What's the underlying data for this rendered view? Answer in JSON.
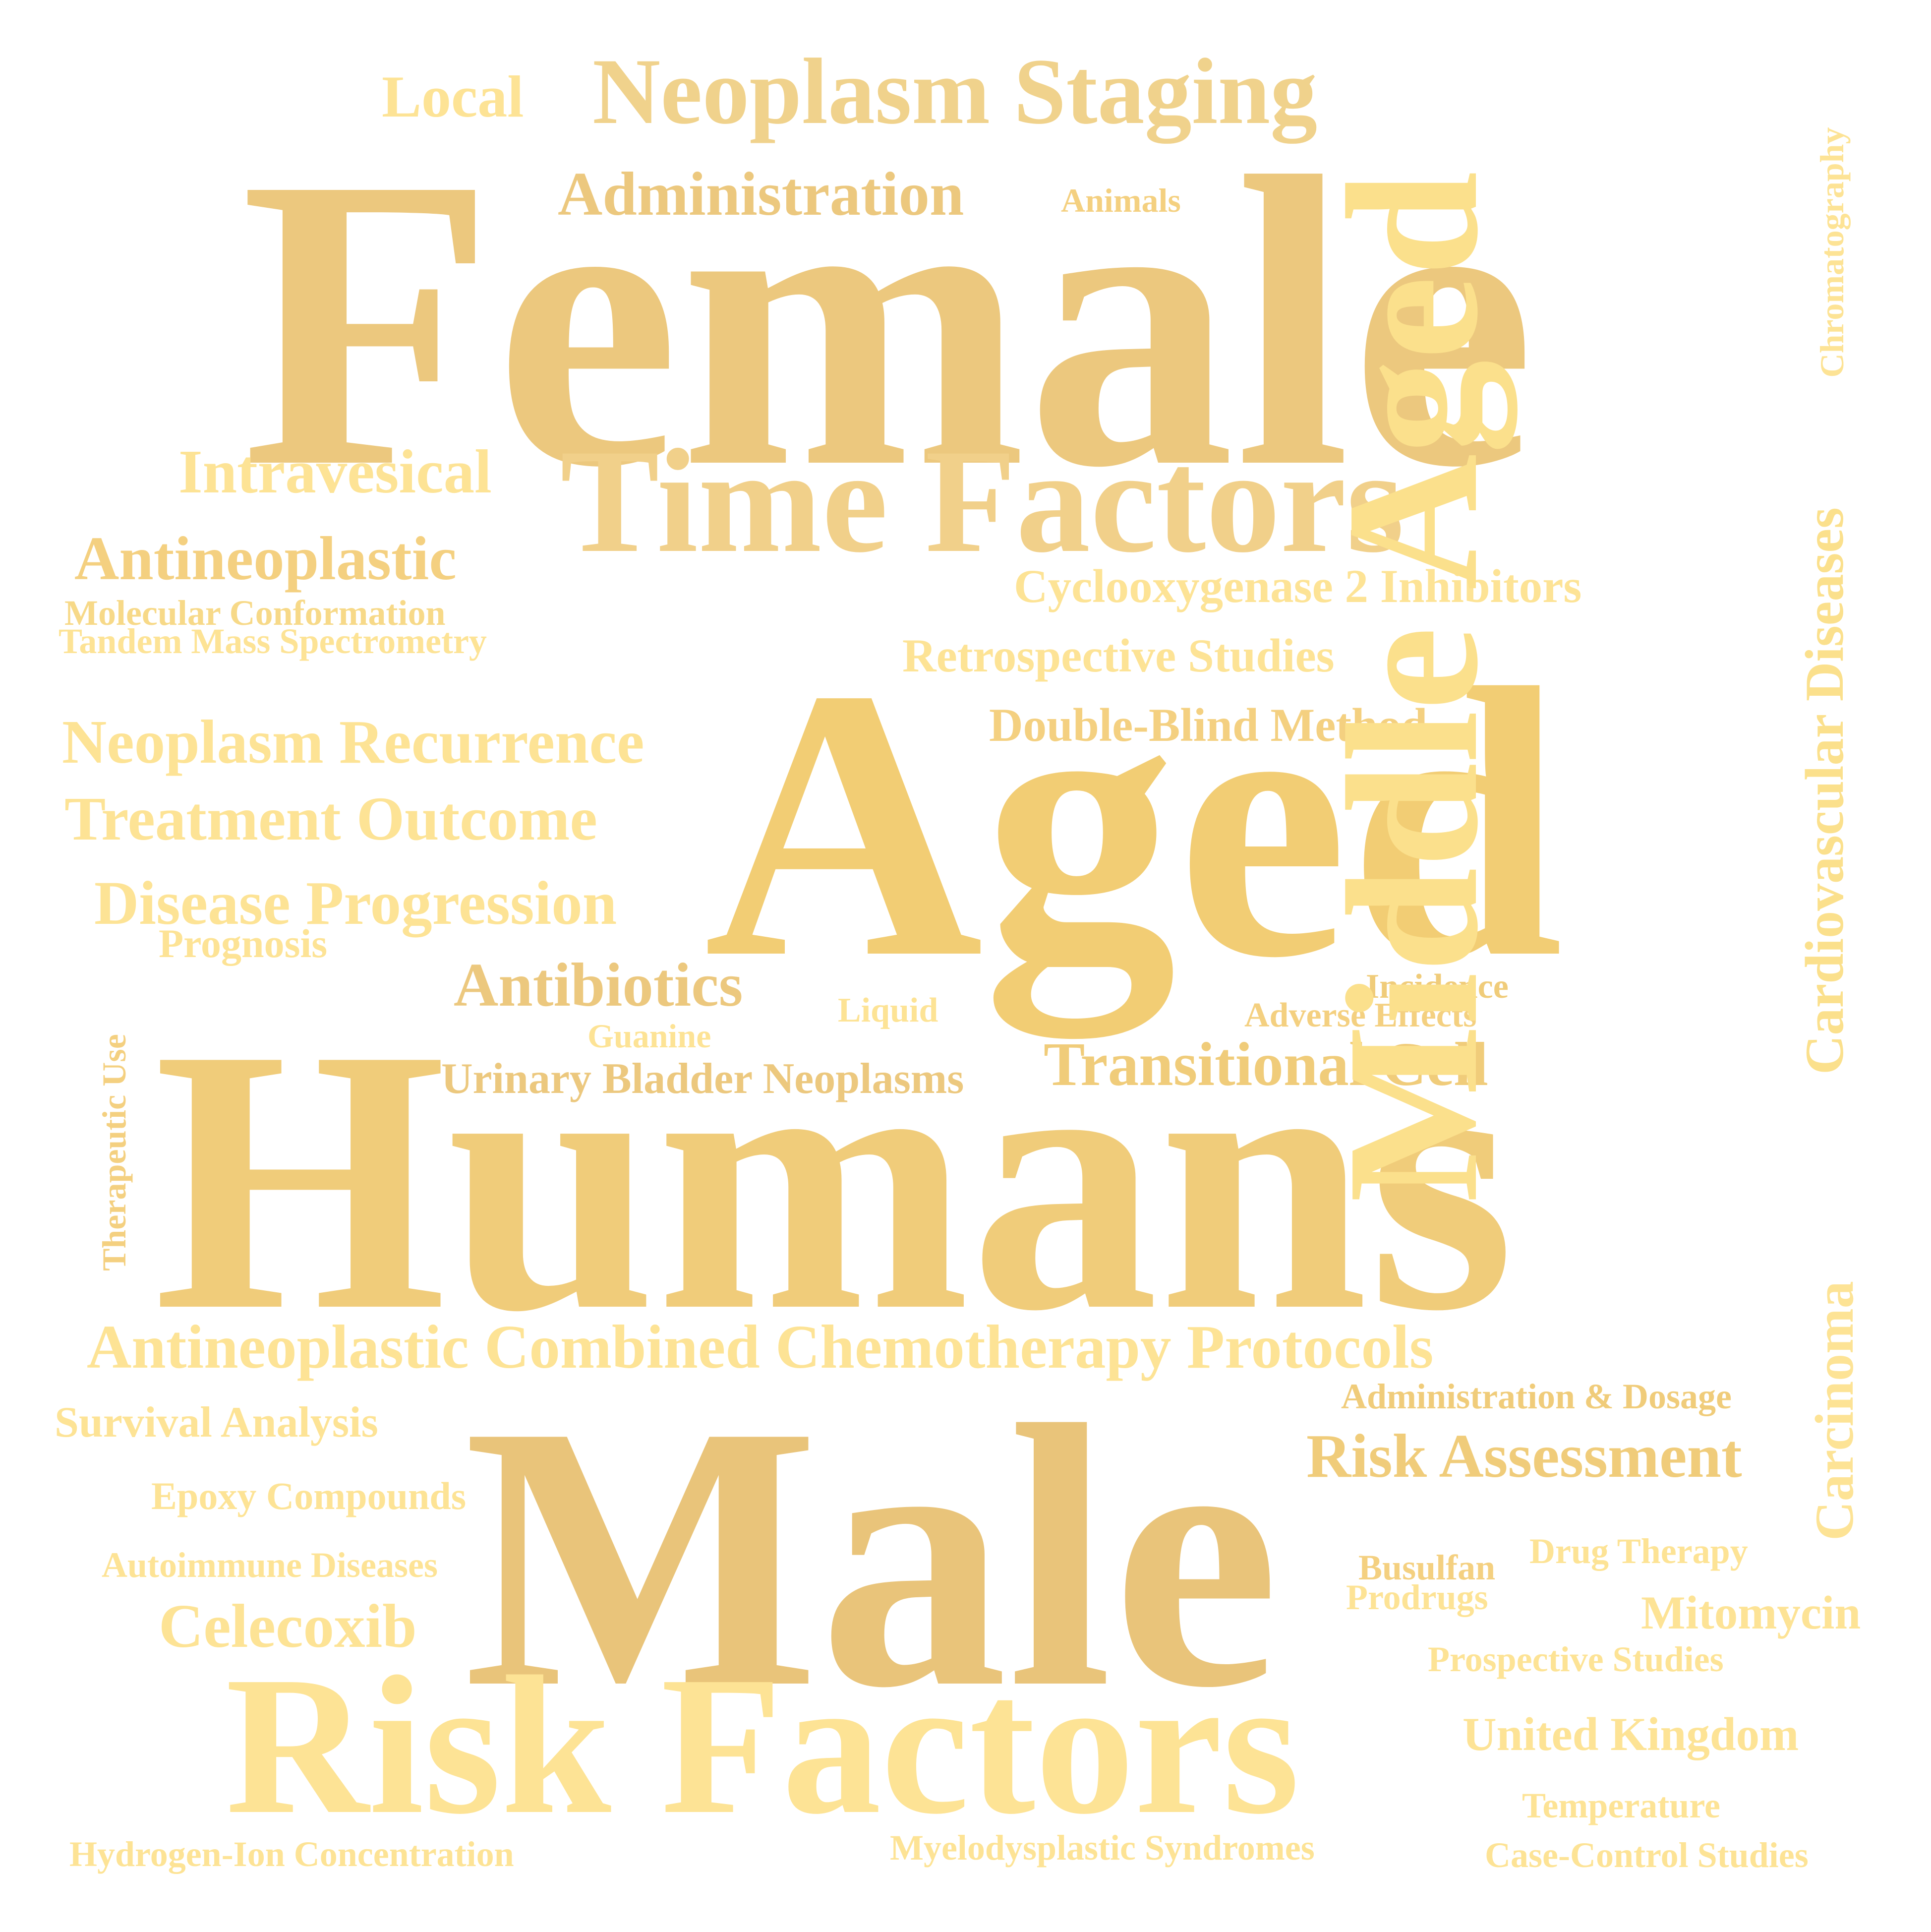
{
  "palette": [
    "#ecc87e",
    "#f0cc7a",
    "#f4d080",
    "#f7d988",
    "#fbe08c",
    "#fde5a0"
  ],
  "words": [
    {
      "id": "w-female",
      "text": "Female",
      "color": "#ecc87e"
    },
    {
      "id": "w-humans",
      "text": "Humans",
      "color": "#f0cc7a"
    },
    {
      "id": "w-male",
      "text": "Male",
      "color": "#e9c47a"
    },
    {
      "id": "w-aged",
      "text": "Aged",
      "color": "#f2cd74"
    },
    {
      "id": "w-middle-aged",
      "text": "Middle Aged",
      "color": "#fbe08c"
    },
    {
      "id": "w-risk-factors",
      "text": "Risk Factors",
      "color": "#fde395"
    },
    {
      "id": "w-time-factors",
      "text": "Time Factors",
      "color": "#f1d08a"
    },
    {
      "id": "w-neoplasm-staging",
      "text": "Neoplasm Staging",
      "color": "#f0d28c"
    },
    {
      "id": "w-administration",
      "text": "Administration",
      "color": "#ecc87e"
    },
    {
      "id": "w-local",
      "text": "Local",
      "color": "#fde395"
    },
    {
      "id": "w-animals",
      "text": "Animals",
      "color": "#f4d080"
    },
    {
      "id": "w-chromatography",
      "text": "Chromatography",
      "color": "#fde395"
    },
    {
      "id": "w-intravesical",
      "text": "Intravesical",
      "color": "#fde395"
    },
    {
      "id": "w-antineoplastic",
      "text": "Antineoplastic",
      "color": "#f4d080"
    },
    {
      "id": "w-molecular-conformation",
      "text": "Molecular Conformation",
      "color": "#f7d988"
    },
    {
      "id": "w-tandem-mass",
      "text": "Tandem Mass Spectrometry",
      "color": "#fde395"
    },
    {
      "id": "w-cox2",
      "text": "Cyclooxygenase 2 Inhibitors",
      "color": "#fde395"
    },
    {
      "id": "w-retrospective",
      "text": "Retrospective Studies",
      "color": "#fde395"
    },
    {
      "id": "w-double-blind",
      "text": "Double-Blind Method",
      "color": "#f4d080"
    },
    {
      "id": "w-cardiovascular",
      "text": "Cardiovascular Diseases",
      "color": "#fbe08c"
    },
    {
      "id": "w-neoplasm-recurrence",
      "text": "Neoplasm Recurrence",
      "color": "#fde395"
    },
    {
      "id": "w-treatment-outcome",
      "text": "Treatment Outcome",
      "color": "#fde395"
    },
    {
      "id": "w-disease-progression",
      "text": "Disease Progression",
      "color": "#fde395"
    },
    {
      "id": "w-prognosis",
      "text": "Prognosis",
      "color": "#fde395"
    },
    {
      "id": "w-antibiotics",
      "text": "Antibiotics",
      "color": "#ecc87e"
    },
    {
      "id": "w-guanine",
      "text": "Guanine",
      "color": "#fde395"
    },
    {
      "id": "w-liquid",
      "text": "Liquid",
      "color": "#fde395"
    },
    {
      "id": "w-incidence",
      "text": "Incidence",
      "color": "#f0cc7a"
    },
    {
      "id": "w-adverse-effects",
      "text": "Adverse Effects",
      "color": "#f4d080"
    },
    {
      "id": "w-transitional-cell",
      "text": "Transitional Cell",
      "color": "#f0cc7a"
    },
    {
      "id": "w-urinary-bladder",
      "text": "Urinary Bladder Neoplasms",
      "color": "#ecc87e"
    },
    {
      "id": "w-therapeutic-use",
      "text": "Therapeutic Use",
      "color": "#f4d080"
    },
    {
      "id": "w-carcinoma",
      "text": "Carcinoma",
      "color": "#fde395"
    },
    {
      "id": "w-combined-chemo",
      "text": "Antineoplastic Combined Chemotherapy Protocols",
      "color": "#fde395"
    },
    {
      "id": "w-admin-dosage",
      "text": "Administration & Dosage",
      "color": "#f0cc7a"
    },
    {
      "id": "w-survival",
      "text": "Survival Analysis",
      "color": "#fde395"
    },
    {
      "id": "w-risk-assessment",
      "text": "Risk Assessment",
      "color": "#f0cc7a"
    },
    {
      "id": "w-epoxy",
      "text": "Epoxy Compounds",
      "color": "#fde395"
    },
    {
      "id": "w-autoimmune",
      "text": "Autoimmune Diseases",
      "color": "#fde395"
    },
    {
      "id": "w-busulfan",
      "text": "Busulfan",
      "color": "#f4d080"
    },
    {
      "id": "w-drug-therapy",
      "text": "Drug Therapy",
      "color": "#fde395"
    },
    {
      "id": "w-prodrugs",
      "text": "Prodrugs",
      "color": "#fde395"
    },
    {
      "id": "w-mitomycin",
      "text": "Mitomycin",
      "color": "#fde395"
    },
    {
      "id": "w-celecoxib",
      "text": "Celecoxib",
      "color": "#fde395"
    },
    {
      "id": "w-prospective",
      "text": "Prospective Studies",
      "color": "#fde395"
    },
    {
      "id": "w-united-kingdom",
      "text": "United Kingdom",
      "color": "#fde395"
    },
    {
      "id": "w-temperature",
      "text": "Temperature",
      "color": "#fde395"
    },
    {
      "id": "w-hydrogen-ion",
      "text": "Hydrogen-Ion Concentration",
      "color": "#fde395"
    },
    {
      "id": "w-myelodysplastic",
      "text": "Myelodysplastic Syndromes",
      "color": "#fde395"
    },
    {
      "id": "w-case-control",
      "text": "Case-Control Studies",
      "color": "#fde395"
    }
  ]
}
